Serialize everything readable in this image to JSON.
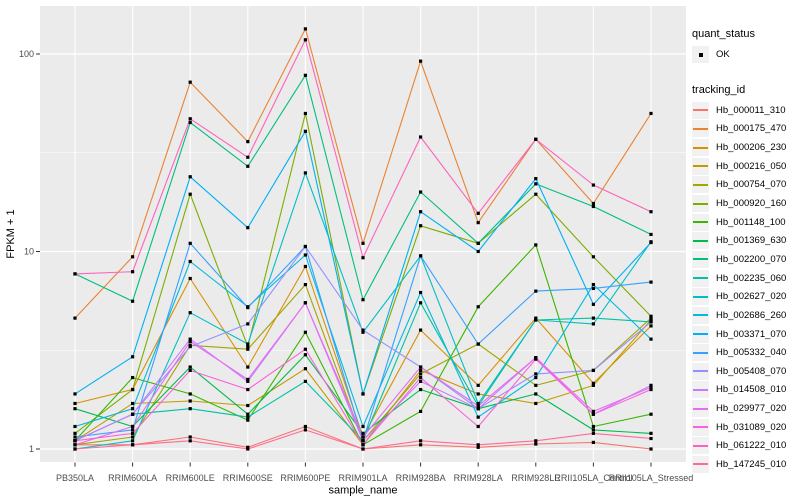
{
  "chart_data": {
    "type": "line",
    "xlabel": "sample_name",
    "ylabel": "FPKM + 1",
    "y_scale": "log10",
    "y_ticks": [
      1,
      10,
      100
    ],
    "y_tick_labels": [
      "1",
      "10",
      "100"
    ],
    "y_minor_ticks": [
      3.1623,
      31.623
    ],
    "ylim_px_note": "log axis, decades ~197.5px",
    "panel_bg": "#EBEBEB",
    "grid_color": "#FFFFFF",
    "tick_label_color": "#4D4D4D",
    "point_color": "#000000",
    "categories": [
      "PB350LA",
      "RRIM600LA",
      "RRIM600LE",
      "RRIM600SE",
      "RRIM600PE",
      "RRIM901LA",
      "RRIM928BA",
      "RRIM928LA",
      "RRIM928LE",
      "RRII105LA_Control",
      "RRII105LA_Stressed"
    ],
    "legend": {
      "quant_status_title": "quant_status",
      "quant_status_items": [
        {
          "label": "OK",
          "marker": "black-point"
        }
      ],
      "series_title": "tracking_id",
      "position": "right"
    },
    "series": [
      {
        "name": "Hb_000011_310",
        "color": "#F8766D",
        "values": [
          1.05,
          1.05,
          1.15,
          1.02,
          1.3,
          1.0,
          1.05,
          1.02,
          1.06,
          1.08,
          1.0
        ]
      },
      {
        "name": "Hb_000175_470",
        "color": "#EA8331",
        "values": [
          4.6,
          9.4,
          72,
          36,
          134,
          11,
          92,
          14,
          37,
          17.5,
          50
        ]
      },
      {
        "name": "Hb_000206_230",
        "color": "#D89000",
        "values": [
          1.7,
          2.0,
          7.3,
          2.6,
          8.4,
          1.15,
          4.0,
          2.1,
          4.6,
          2.15,
          4.2
        ]
      },
      {
        "name": "Hb_000216_050",
        "color": "#C09B00",
        "values": [
          1.1,
          1.7,
          1.75,
          1.66,
          2.55,
          1.05,
          2.5,
          1.9,
          1.7,
          2.1,
          4.5
        ]
      },
      {
        "name": "Hb_000754_070",
        "color": "#A3A500",
        "values": [
          1.05,
          1.15,
          3.35,
          3.2,
          6.8,
          1.1,
          2.4,
          3.4,
          2.1,
          2.5,
          4.6
        ]
      },
      {
        "name": "Hb_000920_160",
        "color": "#7CAE00",
        "values": [
          1.2,
          2.0,
          19.5,
          3.3,
          50,
          1.9,
          13.5,
          11.0,
          19.5,
          9.4,
          4.7
        ]
      },
      {
        "name": "Hb_001148_100",
        "color": "#39B600",
        "values": [
          1.1,
          2.3,
          1.9,
          1.4,
          3.9,
          1.05,
          1.55,
          5.25,
          10.8,
          1.3,
          1.5
        ]
      },
      {
        "name": "Hb_001369_630",
        "color": "#00BB4E",
        "values": [
          1.6,
          1.3,
          2.6,
          1.5,
          3.0,
          1.2,
          2.0,
          1.6,
          1.9,
          1.25,
          1.2
        ]
      },
      {
        "name": "Hb_002200_070",
        "color": "#00BF7D",
        "values": [
          7.7,
          5.6,
          45,
          27,
          78,
          5.7,
          20,
          11,
          22,
          16.9,
          12.2
        ]
      },
      {
        "name": "Hb_002235_060",
        "color": "#00C1A3",
        "values": [
          1.1,
          1.5,
          1.6,
          1.45,
          2.2,
          1.1,
          5.5,
          1.65,
          4.5,
          4.6,
          4.4
        ]
      },
      {
        "name": "Hb_002627_020",
        "color": "#00BFC4",
        "values": [
          1.0,
          1.1,
          4.9,
          3.4,
          25,
          3.9,
          9.5,
          1.7,
          4.5,
          4.3,
          11.2
        ]
      },
      {
        "name": "Hb_002686_260",
        "color": "#00BAE0",
        "values": [
          1.3,
          1.6,
          8.9,
          5.25,
          9.6,
          1.3,
          6.2,
          1.45,
          2.3,
          6.8,
          3.6
        ]
      },
      {
        "name": "Hb_003371_070",
        "color": "#00B0F6",
        "values": [
          1.9,
          2.93,
          23.9,
          13.2,
          40.6,
          1.9,
          15.9,
          10.0,
          23.4,
          5.4,
          11.1
        ]
      },
      {
        "name": "Hb_005332_040",
        "color": "#35A2FF",
        "values": [
          1.15,
          1.25,
          11.0,
          5.2,
          10.6,
          1.1,
          9.5,
          3.4,
          6.3,
          6.5,
          7.0
        ]
      },
      {
        "name": "Hb_005408_070",
        "color": "#9590FF",
        "values": [
          1.1,
          1.5,
          3.3,
          4.3,
          10.6,
          4.0,
          2.6,
          1.6,
          2.4,
          2.5,
          4.4
        ]
      },
      {
        "name": "Hb_014508_010",
        "color": "#C77CFF",
        "values": [
          1.1,
          1.5,
          3.6,
          2.2,
          5.5,
          1.1,
          2.2,
          1.6,
          2.9,
          1.5,
          2.1
        ]
      },
      {
        "name": "Hb_029977_020",
        "color": "#E76BF3",
        "values": [
          1.05,
          1.3,
          3.5,
          2.25,
          5.5,
          1.15,
          2.6,
          1.65,
          2.9,
          1.55,
          2.05
        ]
      },
      {
        "name": "Hb_031089_020",
        "color": "#FA62DB",
        "values": [
          1.1,
          1.2,
          2.5,
          2.0,
          3.2,
          1.05,
          2.3,
          1.3,
          2.85,
          1.5,
          2.0
        ]
      },
      {
        "name": "Hb_061222_010",
        "color": "#FF62BC",
        "values": [
          7.7,
          7.9,
          47,
          30,
          118,
          9.3,
          38,
          15.6,
          37,
          21.7,
          15.9
        ]
      },
      {
        "name": "Hb_147245_010",
        "color": "#FF6A98",
        "values": [
          1.0,
          1.05,
          1.1,
          1.0,
          1.25,
          1.0,
          1.1,
          1.05,
          1.1,
          1.2,
          1.13
        ]
      }
    ]
  }
}
